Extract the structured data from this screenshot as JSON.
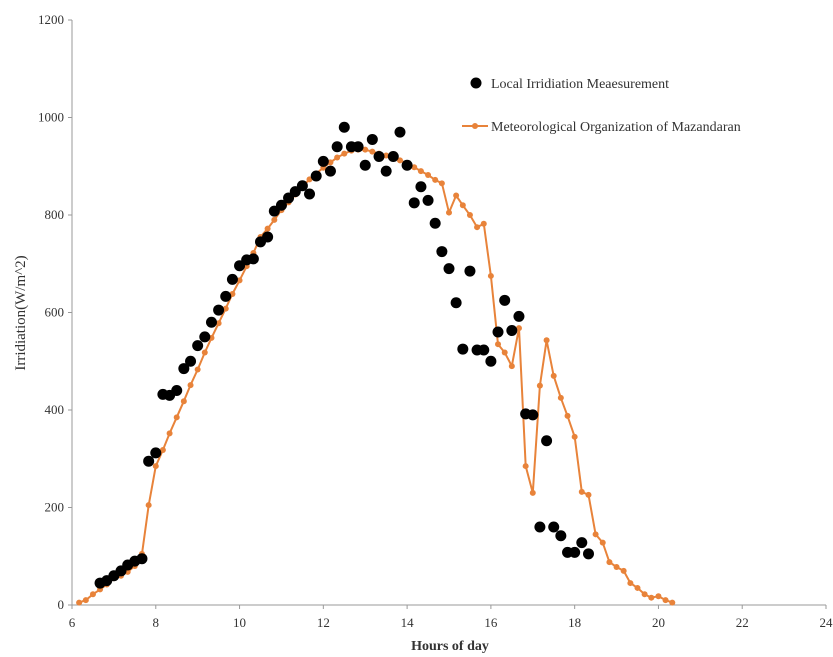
{
  "chart_data": {
    "type": "scatter",
    "title": "",
    "xlabel": "Hours of day",
    "ylabel": "Irridiation(W/m^2)",
    "xlim": [
      6,
      24
    ],
    "ylim": [
      0,
      1200
    ],
    "x_ticks": [
      6,
      8,
      10,
      12,
      14,
      16,
      18,
      20,
      22,
      24
    ],
    "y_ticks": [
      0,
      200,
      400,
      600,
      800,
      1000,
      1200
    ],
    "grid": false,
    "legend_position": "top-right",
    "series": [
      {
        "name": "Local Irridiation Meaesurement",
        "kind": "scatter",
        "color": "#000000",
        "points": [
          [
            6.67,
            45
          ],
          [
            6.83,
            50
          ],
          [
            7.0,
            60
          ],
          [
            7.17,
            70
          ],
          [
            7.33,
            82
          ],
          [
            7.5,
            90
          ],
          [
            7.67,
            95
          ],
          [
            7.83,
            295
          ],
          [
            8.0,
            312
          ],
          [
            8.17,
            432
          ],
          [
            8.33,
            430
          ],
          [
            8.5,
            440
          ],
          [
            8.67,
            485
          ],
          [
            8.83,
            500
          ],
          [
            9.0,
            532
          ],
          [
            9.17,
            550
          ],
          [
            9.33,
            580
          ],
          [
            9.5,
            605
          ],
          [
            9.67,
            633
          ],
          [
            9.83,
            668
          ],
          [
            10.0,
            696
          ],
          [
            10.17,
            708
          ],
          [
            10.33,
            710
          ],
          [
            10.5,
            745
          ],
          [
            10.67,
            755
          ],
          [
            10.83,
            808
          ],
          [
            11.0,
            820
          ],
          [
            11.17,
            835
          ],
          [
            11.33,
            848
          ],
          [
            11.5,
            860
          ],
          [
            11.67,
            843
          ],
          [
            11.83,
            880
          ],
          [
            12.0,
            910
          ],
          [
            12.17,
            890
          ],
          [
            12.33,
            940
          ],
          [
            12.5,
            980
          ],
          [
            12.67,
            940
          ],
          [
            12.83,
            940
          ],
          [
            13.0,
            902
          ],
          [
            13.17,
            955
          ],
          [
            13.33,
            920
          ],
          [
            13.5,
            890
          ],
          [
            13.67,
            920
          ],
          [
            13.83,
            970
          ],
          [
            14.0,
            902
          ],
          [
            14.17,
            825
          ],
          [
            14.33,
            858
          ],
          [
            14.5,
            830
          ],
          [
            14.67,
            783
          ],
          [
            14.83,
            725
          ],
          [
            15.0,
            690
          ],
          [
            15.17,
            620
          ],
          [
            15.33,
            525
          ],
          [
            15.5,
            685
          ],
          [
            15.67,
            523
          ],
          [
            15.83,
            523
          ],
          [
            16.0,
            500
          ],
          [
            16.17,
            560
          ],
          [
            16.33,
            625
          ],
          [
            16.5,
            563
          ],
          [
            16.67,
            592
          ],
          [
            16.83,
            392
          ],
          [
            17.0,
            390
          ],
          [
            17.17,
            160
          ],
          [
            17.33,
            337
          ],
          [
            17.5,
            160
          ],
          [
            17.67,
            142
          ],
          [
            17.83,
            108
          ],
          [
            18.0,
            108
          ],
          [
            18.17,
            128
          ],
          [
            18.33,
            105
          ]
        ]
      },
      {
        "name": "Meteorological Organization of Mazandaran",
        "kind": "line-marker",
        "color": "#e8833a",
        "points": [
          [
            6.17,
            5
          ],
          [
            6.33,
            10
          ],
          [
            6.5,
            22
          ],
          [
            6.67,
            32
          ],
          [
            6.83,
            42
          ],
          [
            7.0,
            55
          ],
          [
            7.17,
            60
          ],
          [
            7.33,
            68
          ],
          [
            7.5,
            80
          ],
          [
            7.67,
            105
          ],
          [
            7.83,
            205
          ],
          [
            8.0,
            285
          ],
          [
            8.17,
            318
          ],
          [
            8.33,
            352
          ],
          [
            8.5,
            385
          ],
          [
            8.67,
            418
          ],
          [
            8.83,
            451
          ],
          [
            9.0,
            483
          ],
          [
            9.17,
            518
          ],
          [
            9.33,
            548
          ],
          [
            9.5,
            578
          ],
          [
            9.67,
            608
          ],
          [
            9.83,
            638
          ],
          [
            10.0,
            666
          ],
          [
            10.17,
            695
          ],
          [
            10.33,
            722
          ],
          [
            10.5,
            755
          ],
          [
            10.67,
            772
          ],
          [
            10.83,
            790
          ],
          [
            11.0,
            810
          ],
          [
            11.17,
            826
          ],
          [
            11.33,
            842
          ],
          [
            11.5,
            858
          ],
          [
            11.67,
            873
          ],
          [
            11.83,
            885
          ],
          [
            12.0,
            897
          ],
          [
            12.17,
            908
          ],
          [
            12.33,
            918
          ],
          [
            12.5,
            926
          ],
          [
            12.67,
            932
          ],
          [
            12.83,
            934
          ],
          [
            13.0,
            934
          ],
          [
            13.17,
            930
          ],
          [
            13.33,
            926
          ],
          [
            13.5,
            922
          ],
          [
            13.67,
            918
          ],
          [
            13.83,
            912
          ],
          [
            14.0,
            906
          ],
          [
            14.17,
            898
          ],
          [
            14.33,
            890
          ],
          [
            14.5,
            882
          ],
          [
            14.67,
            872
          ],
          [
            14.83,
            865
          ],
          [
            15.0,
            805
          ],
          [
            15.17,
            840
          ],
          [
            15.33,
            820
          ],
          [
            15.5,
            800
          ],
          [
            15.67,
            775
          ],
          [
            15.83,
            782
          ],
          [
            16.0,
            675
          ],
          [
            16.17,
            535
          ],
          [
            16.33,
            518
          ],
          [
            16.5,
            490
          ],
          [
            16.67,
            568
          ],
          [
            16.83,
            285
          ],
          [
            17.0,
            230
          ],
          [
            17.17,
            450
          ],
          [
            17.33,
            543
          ],
          [
            17.5,
            470
          ],
          [
            17.67,
            425
          ],
          [
            17.83,
            388
          ],
          [
            18.0,
            345
          ],
          [
            18.17,
            232
          ],
          [
            18.33,
            226
          ],
          [
            18.5,
            145
          ],
          [
            18.67,
            128
          ],
          [
            18.83,
            88
          ],
          [
            19.0,
            78
          ],
          [
            19.17,
            70
          ],
          [
            19.33,
            45
          ],
          [
            19.5,
            35
          ],
          [
            19.67,
            22
          ],
          [
            19.83,
            15
          ],
          [
            20.0,
            18
          ],
          [
            20.17,
            10
          ],
          [
            20.33,
            5
          ]
        ]
      }
    ]
  },
  "colors": {
    "axis": "#999999",
    "text": "#333333"
  }
}
